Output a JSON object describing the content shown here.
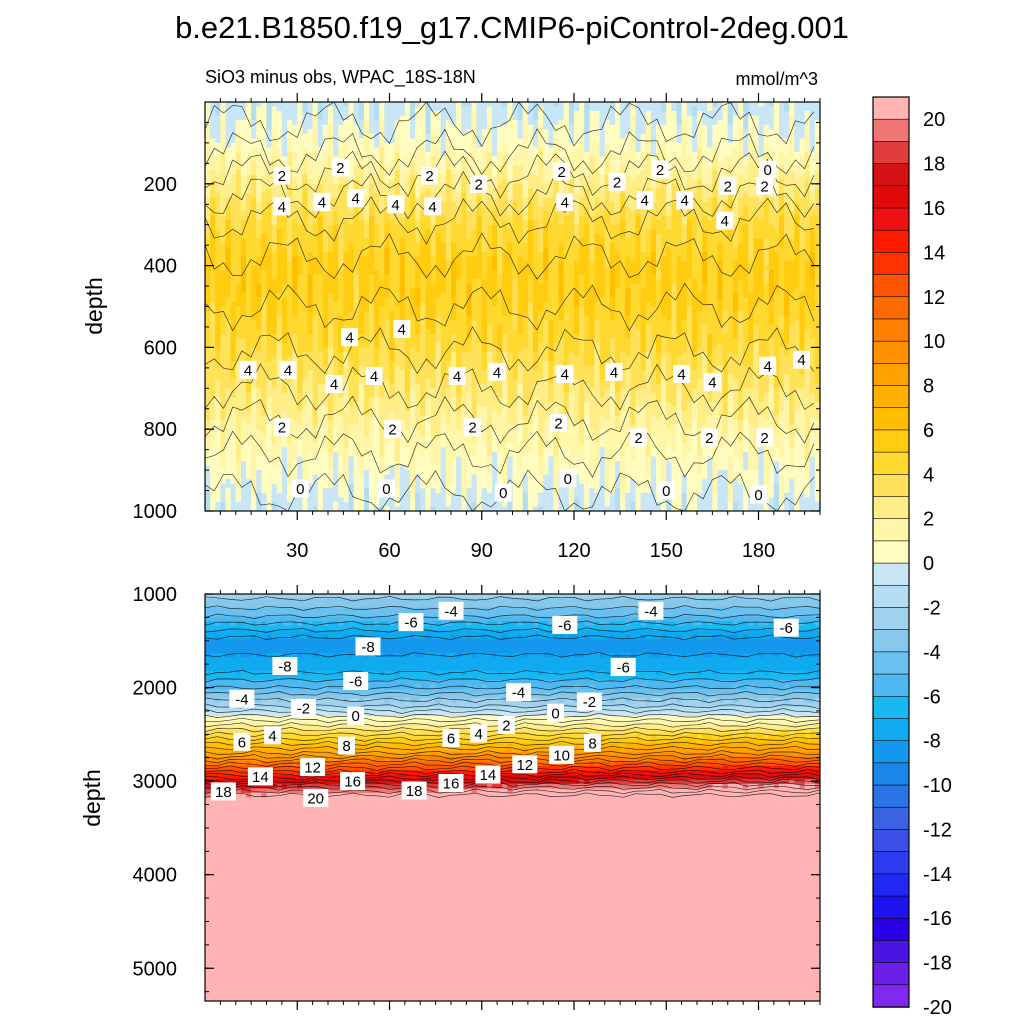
{
  "title": "b.e21.B1850.f19_g17.CMIP6-piControl-2deg.001",
  "upper_panel": {
    "subtitle_left": "SiO3 minus obs, WPAC_18S-18N",
    "subtitle_right": "mmol/m^3",
    "ylabel": "depth"
  },
  "lower_panel": {
    "ylabel": "depth"
  },
  "colorbar": {
    "levels": [
      -20,
      -18,
      -16,
      -14,
      -12,
      -10,
      -8,
      -6,
      -4,
      -2,
      0,
      2,
      4,
      6,
      8,
      10,
      12,
      14,
      16,
      18,
      20
    ],
    "label_values": [
      "20",
      "18",
      "16",
      "14",
      "12",
      "10",
      "8",
      "6",
      "4",
      "2",
      "0",
      "-2",
      "-4",
      "-6",
      "-8",
      "-10",
      "-12",
      "-14",
      "-16",
      "-18",
      "-20"
    ],
    "colors_top_to_bottom": [
      "#ffb3b3",
      "#f07575",
      "#e03c3c",
      "#d41414",
      "#e00a0a",
      "#ee1111",
      "#ff1a00",
      "#ff3300",
      "#ff5500",
      "#ff6a00",
      "#ff7f00",
      "#ff9100",
      "#ffa200",
      "#ffb000",
      "#ffbe00",
      "#ffcc10",
      "#ffd830",
      "#ffe25a",
      "#ffee88",
      "#fff6aa",
      "#fffcc0",
      "#c8e6f5",
      "#b3ddf0",
      "#a0d2ee",
      "#85c8ec",
      "#6ac0ee",
      "#4fb8f0",
      "#18b8f2",
      "#10aaf0",
      "#1498ee",
      "#1a86ea",
      "#2a74e6",
      "#3a62e2",
      "#3c50e8",
      "#2e3cf0",
      "#2228f4",
      "#1e12ef",
      "#2a00e6",
      "#4a14e4",
      "#6a20e8",
      "#8028f0"
    ]
  },
  "chart_data": [
    {
      "type": "contour",
      "panel": "upper",
      "title": "SiO3 minus obs, WPAC_18S-18N",
      "units": "mmol/m^3",
      "xlabel": "",
      "ylabel": "depth",
      "xlim": [
        0,
        200
      ],
      "ylim": [
        1000,
        0
      ],
      "xticks": [
        30,
        60,
        90,
        120,
        150,
        180
      ],
      "yticks": [
        200,
        400,
        600,
        800,
        1000
      ],
      "profile": {
        "depth": [
          0,
          100,
          200,
          300,
          400,
          500,
          600,
          700,
          800,
          900,
          1000
        ],
        "value": [
          -0.5,
          0.5,
          2.5,
          4.2,
          5.2,
          5.0,
          4.1,
          3.0,
          1.7,
          0.5,
          -0.4
        ]
      },
      "contour_labels": [
        {
          "v": "2",
          "x": 25,
          "d": 180
        },
        {
          "v": "2",
          "x": 44,
          "d": 160
        },
        {
          "v": "2",
          "x": 73,
          "d": 180
        },
        {
          "v": "2",
          "x": 89,
          "d": 200
        },
        {
          "v": "2",
          "x": 116,
          "d": 170
        },
        {
          "v": "2",
          "x": 134,
          "d": 195
        },
        {
          "v": "2",
          "x": 148,
          "d": 165
        },
        {
          "v": "2",
          "x": 170,
          "d": 205
        },
        {
          "v": "0",
          "x": 183,
          "d": 165
        },
        {
          "v": "2",
          "x": 182,
          "d": 205
        },
        {
          "v": "4",
          "x": 25,
          "d": 255
        },
        {
          "v": "4",
          "x": 38,
          "d": 245
        },
        {
          "v": "4",
          "x": 49,
          "d": 235
        },
        {
          "v": "4",
          "x": 62,
          "d": 250
        },
        {
          "v": "4",
          "x": 74,
          "d": 255
        },
        {
          "v": "4",
          "x": 117,
          "d": 245
        },
        {
          "v": "4",
          "x": 143,
          "d": 240
        },
        {
          "v": "4",
          "x": 156,
          "d": 240
        },
        {
          "v": "4",
          "x": 169,
          "d": 290
        },
        {
          "v": "4",
          "x": 47,
          "d": 575
        },
        {
          "v": "4",
          "x": 64,
          "d": 555
        },
        {
          "v": "4",
          "x": 14,
          "d": 655
        },
        {
          "v": "4",
          "x": 27,
          "d": 655
        },
        {
          "v": "4",
          "x": 42,
          "d": 690
        },
        {
          "v": "4",
          "x": 55,
          "d": 670
        },
        {
          "v": "4",
          "x": 82,
          "d": 670
        },
        {
          "v": "4",
          "x": 95,
          "d": 660
        },
        {
          "v": "4",
          "x": 117,
          "d": 665
        },
        {
          "v": "4",
          "x": 133,
          "d": 660
        },
        {
          "v": "4",
          "x": 155,
          "d": 665
        },
        {
          "v": "4",
          "x": 165,
          "d": 685
        },
        {
          "v": "4",
          "x": 183,
          "d": 645
        },
        {
          "v": "4",
          "x": 194,
          "d": 630
        },
        {
          "v": "2",
          "x": 25,
          "d": 795
        },
        {
          "v": "2",
          "x": 61,
          "d": 800
        },
        {
          "v": "2",
          "x": 87,
          "d": 795
        },
        {
          "v": "2",
          "x": 115,
          "d": 785
        },
        {
          "v": "2",
          "x": 141,
          "d": 820
        },
        {
          "v": "2",
          "x": 164,
          "d": 820
        },
        {
          "v": "2",
          "x": 182,
          "d": 820
        },
        {
          "v": "0",
          "x": 31,
          "d": 945
        },
        {
          "v": "0",
          "x": 59,
          "d": 945
        },
        {
          "v": "0",
          "x": 97,
          "d": 955
        },
        {
          "v": "0",
          "x": 118,
          "d": 920
        },
        {
          "v": "0",
          "x": 150,
          "d": 950
        },
        {
          "v": "0",
          "x": 180,
          "d": 960
        }
      ]
    },
    {
      "type": "contour",
      "panel": "lower",
      "xlabel": "",
      "ylabel": "depth",
      "xlim": [
        0,
        200
      ],
      "ylim": [
        5350,
        1000
      ],
      "xticks": [
        30,
        60,
        90,
        120,
        150,
        180
      ],
      "yticks": [
        1000,
        2000,
        3000,
        4000,
        5000
      ],
      "profile": {
        "depth": [
          1000,
          1200,
          1500,
          1800,
          2000,
          2200,
          2350,
          2500,
          2700,
          2900,
          3050,
          3150,
          3300,
          5350
        ],
        "value": [
          -2.5,
          -4.5,
          -8.5,
          -7.5,
          -5.0,
          -2.0,
          1.0,
          4.0,
          8.0,
          13.0,
          17.5,
          20.0,
          21.0,
          21.0
        ]
      },
      "contour_labels": [
        {
          "v": "-4",
          "x": 80,
          "d": 1180
        },
        {
          "v": "-6",
          "x": 67,
          "d": 1300
        },
        {
          "v": "-6",
          "x": 117,
          "d": 1330
        },
        {
          "v": "-4",
          "x": 145,
          "d": 1180
        },
        {
          "v": "-6",
          "x": 189,
          "d": 1360
        },
        {
          "v": "-8",
          "x": 53,
          "d": 1560
        },
        {
          "v": "-8",
          "x": 26,
          "d": 1770
        },
        {
          "v": "-6",
          "x": 49,
          "d": 1930
        },
        {
          "v": "-6",
          "x": 136,
          "d": 1780
        },
        {
          "v": "-4",
          "x": 12,
          "d": 2120
        },
        {
          "v": "-2",
          "x": 32,
          "d": 2220
        },
        {
          "v": "-4",
          "x": 102,
          "d": 2050
        },
        {
          "v": "0",
          "x": 49,
          "d": 2300
        },
        {
          "v": "0",
          "x": 114,
          "d": 2270
        },
        {
          "v": "-2",
          "x": 125,
          "d": 2150
        },
        {
          "v": "2",
          "x": 98,
          "d": 2400
        },
        {
          "v": "6",
          "x": 12,
          "d": 2580
        },
        {
          "v": "4",
          "x": 22,
          "d": 2510
        },
        {
          "v": "8",
          "x": 46,
          "d": 2620
        },
        {
          "v": "6",
          "x": 80,
          "d": 2540
        },
        {
          "v": "4",
          "x": 89,
          "d": 2490
        },
        {
          "v": "8",
          "x": 126,
          "d": 2590
        },
        {
          "v": "14",
          "x": 18,
          "d": 2950
        },
        {
          "v": "12",
          "x": 35,
          "d": 2850
        },
        {
          "v": "16",
          "x": 48,
          "d": 3000
        },
        {
          "v": "12",
          "x": 104,
          "d": 2820
        },
        {
          "v": "10",
          "x": 116,
          "d": 2720
        },
        {
          "v": "18",
          "x": 6,
          "d": 3110
        },
        {
          "v": "20",
          "x": 36,
          "d": 3180
        },
        {
          "v": "18",
          "x": 68,
          "d": 3100
        },
        {
          "v": "16",
          "x": 80,
          "d": 3020
        },
        {
          "v": "14",
          "x": 92,
          "d": 2930
        }
      ]
    }
  ]
}
